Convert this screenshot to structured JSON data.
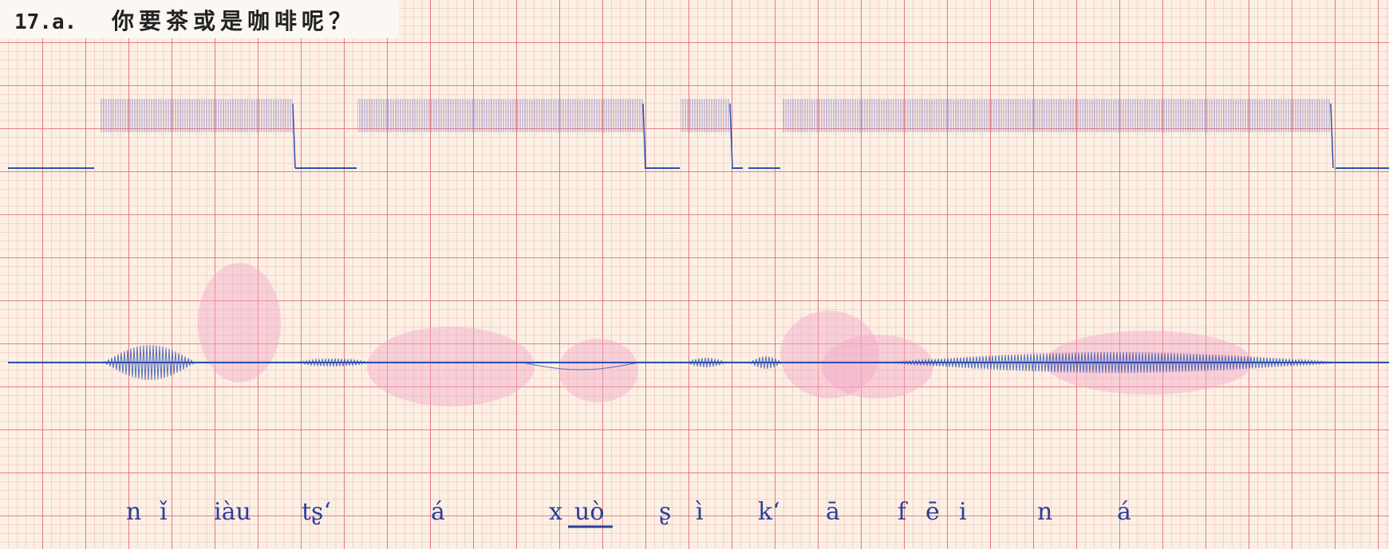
{
  "header": {
    "number": "17.a.",
    "sentence": "你要茶或是咖啡呢？"
  },
  "transcription": [
    "n",
    "ǐ",
    "iàu",
    "tʂʻ",
    "á",
    "x",
    "uò",
    "ʂ",
    "ì",
    "kʻ",
    "ā",
    "f",
    "ē",
    "i",
    "n",
    "á"
  ]
}
